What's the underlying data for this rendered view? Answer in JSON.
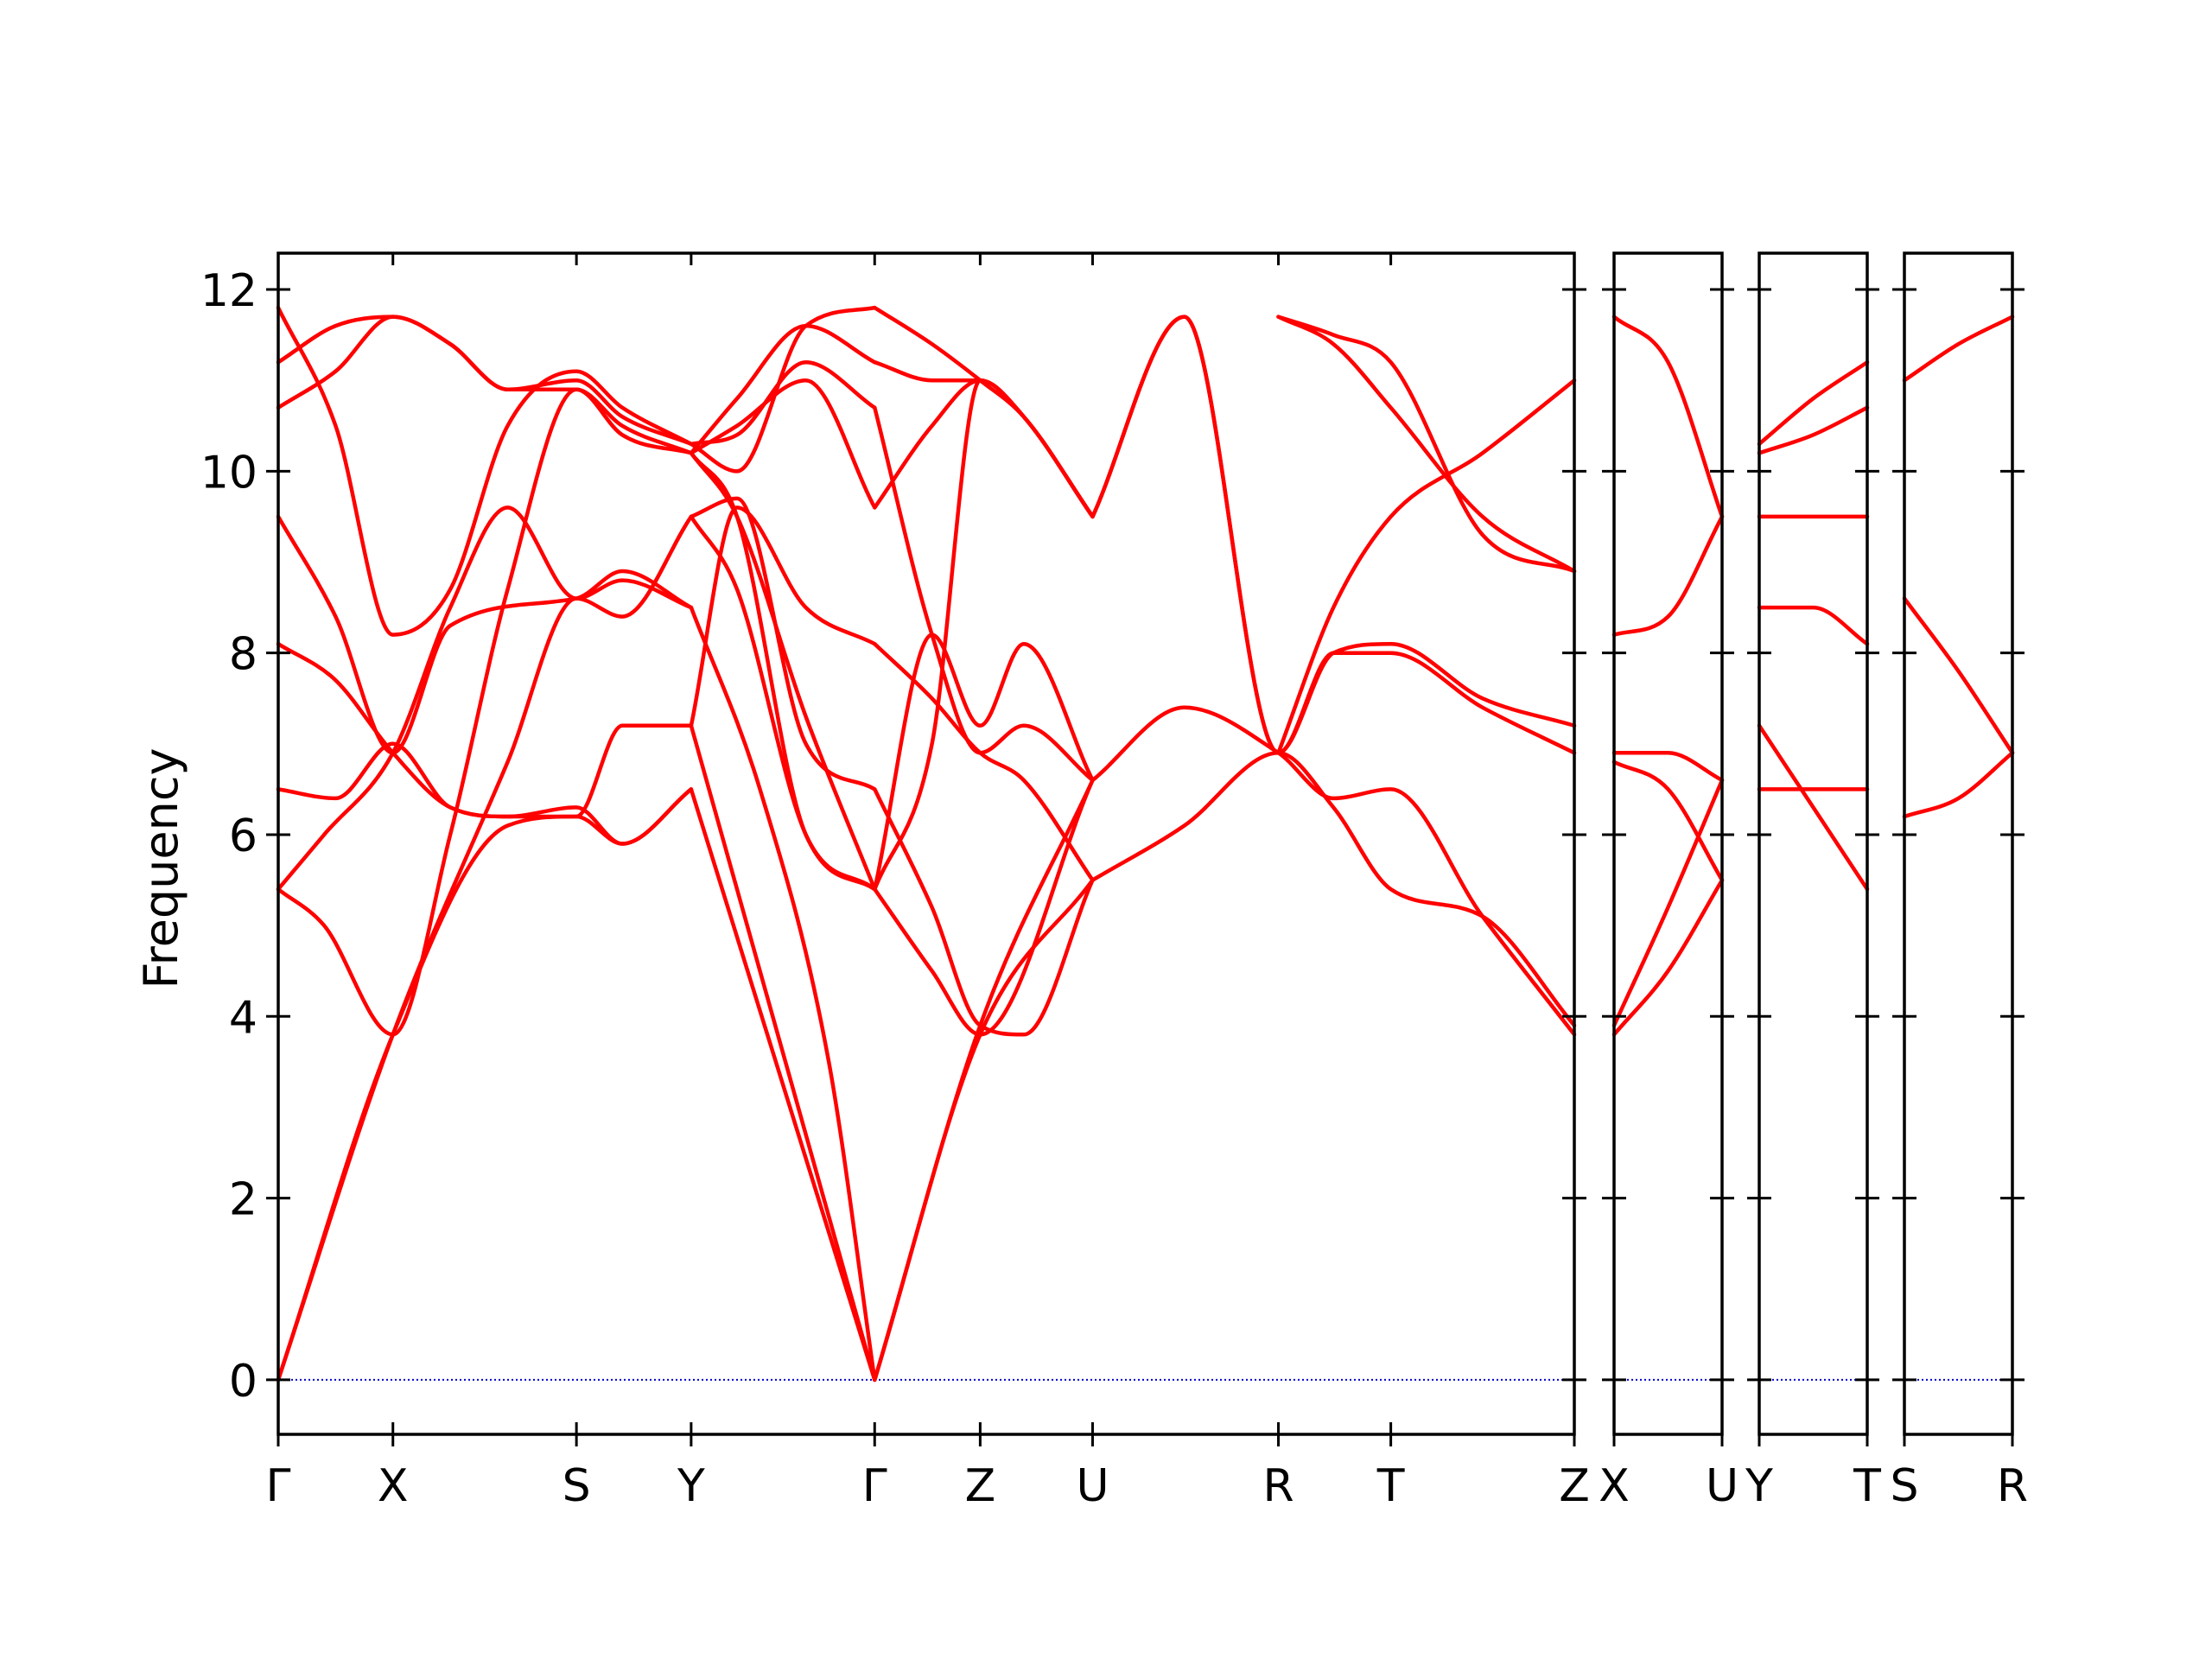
{
  "chart_data": {
    "type": "line",
    "ylabel": "Frequency",
    "ylim": [
      -0.6,
      12.4
    ],
    "yticks": [
      "0",
      "2",
      "4",
      "6",
      "8",
      "10",
      "12"
    ],
    "band_color": "#ff0000",
    "zero_line_color": "#0000cc",
    "segments": [
      {
        "labels": [
          "Γ",
          "X",
          "S",
          "Y",
          "Γ",
          "Z",
          "U",
          "R",
          "T",
          "Z"
        ],
        "label_pos": [
          0,
          1,
          2.6,
          3.6,
          5.2,
          6.12,
          7.1,
          8.72,
          9.7,
          11.3
        ],
        "bands": [
          {
            "x": [
              0,
              1,
              2,
              2.6,
              3.0,
              3.6
            ],
            "y": [
              0,
              3.8,
              6.1,
              6.2,
              5.9,
              6.5
            ]
          },
          {
            "x": [
              0,
              1,
              2,
              2.6,
              3.0,
              3.6
            ],
            "y": [
              0,
              3.8,
              6.8,
              8.6,
              8.4,
              9.5
            ]
          },
          {
            "x": [
              0,
              0.4,
              1,
              1.5,
              2.0,
              2.6,
              3.0,
              3.6
            ],
            "y": [
              5.4,
              5.0,
              3.8,
              6.0,
              8.7,
              10.9,
              10.5,
              10.2
            ]
          },
          {
            "x": [
              0,
              0.4,
              1,
              1.5,
              2.0,
              2.6,
              3.0,
              3.6
            ],
            "y": [
              5.4,
              6.0,
              6.9,
              8.5,
              9.6,
              8.6,
              8.8,
              8.5
            ]
          },
          {
            "x": [
              0,
              0.5,
              1,
              1.5,
              2.0,
              2.6,
              3.0,
              3.6
            ],
            "y": [
              6.5,
              6.4,
              7.0,
              6.3,
              6.2,
              6.2,
              7.2,
              7.2
            ]
          },
          {
            "x": [
              0,
              0.5,
              1,
              1.5,
              2.0,
              2.6,
              3.0,
              3.6
            ],
            "y": [
              8.1,
              7.7,
              6.9,
              6.3,
              6.2,
              6.3,
              5.9,
              6.5
            ]
          },
          {
            "x": [
              0,
              0.5,
              1,
              1.5,
              2.6,
              3.0,
              3.6
            ],
            "y": [
              9.5,
              8.4,
              6.9,
              8.3,
              8.6,
              8.9,
              8.5
            ]
          },
          {
            "x": [
              0,
              0.5,
              1,
              1.5,
              2.0,
              2.6,
              3.0,
              3.6
            ],
            "y": [
              10.7,
              11.1,
              11.7,
              11.4,
              10.9,
              10.9,
              10.4,
              10.2
            ]
          },
          {
            "x": [
              0,
              0.5,
              1,
              1.5,
              2.0,
              2.6,
              3.0,
              3.6
            ],
            "y": [
              11.2,
              11.6,
              11.7,
              11.4,
              10.9,
              11.0,
              10.6,
              10.3
            ]
          },
          {
            "x": [
              0,
              0.5,
              1,
              1.5,
              2.0,
              2.6,
              3.0,
              3.6
            ],
            "y": [
              11.8,
              10.5,
              8.2,
              8.7,
              10.5,
              11.1,
              10.7,
              10.3
            ]
          },
          {
            "x": [
              3.6,
              5.2
            ],
            "y": [
              6.5,
              0
            ]
          },
          {
            "x": [
              3.6,
              5.2
            ],
            "y": [
              7.2,
              0
            ]
          },
          {
            "x": [
              3.6,
              4.2,
              4.8,
              5.2
            ],
            "y": [
              8.5,
              6.5,
              3.5,
              0
            ]
          },
          {
            "x": [
              3.6,
              4.0,
              4.6,
              5.2
            ],
            "y": [
              9.5,
              8.7,
              6.0,
              5.4
            ]
          },
          {
            "x": [
              3.6,
              4.0,
              4.6,
              5.2
            ],
            "y": [
              10.2,
              9.5,
              7.3,
              5.4
            ]
          },
          {
            "x": [
              3.6,
              4.0,
              4.6,
              5.2
            ],
            "y": [
              10.2,
              9.5,
              6.0,
              5.4
            ]
          },
          {
            "x": [
              3.6,
              4.0,
              4.6,
              5.2
            ],
            "y": [
              9.5,
              9.7,
              7.0,
              6.5
            ]
          },
          {
            "x": [
              3.6,
              4.0,
              4.6,
              5.2
            ],
            "y": [
              7.2,
              9.6,
              8.5,
              8.1
            ]
          },
          {
            "x": [
              3.6,
              4.0,
              4.6,
              5.2
            ],
            "y": [
              10.2,
              10.5,
              11.0,
              9.6
            ]
          },
          {
            "x": [
              3.6,
              4.0,
              4.6,
              5.2
            ],
            "y": [
              10.3,
              10.4,
              11.2,
              10.7
            ]
          },
          {
            "x": [
              3.6,
              4.0,
              4.6,
              5.2
            ],
            "y": [
              10.2,
              10.8,
              11.6,
              11.2
            ]
          },
          {
            "x": [
              3.6,
              4.0,
              4.6,
              5.2
            ],
            "y": [
              10.3,
              10.0,
              11.6,
              11.8
            ]
          },
          {
            "x": [
              5.2,
              6.12,
              7.1
            ],
            "y": [
              0,
              3.8,
              5.5
            ]
          },
          {
            "x": [
              5.2,
              6.12,
              7.1
            ],
            "y": [
              0,
              3.9,
              6.6
            ]
          },
          {
            "x": [
              5.2,
              5.7,
              6.12,
              7.1
            ],
            "y": [
              5.4,
              4.5,
              3.8,
              6.6
            ]
          },
          {
            "x": [
              5.2,
              5.7,
              6.12,
              6.5,
              7.1
            ],
            "y": [
              5.4,
              7.0,
              11.0,
              10.6,
              9.5
            ]
          },
          {
            "x": [
              5.2,
              5.7,
              6.12,
              6.5,
              7.1
            ],
            "y": [
              5.4,
              8.2,
              7.2,
              8.1,
              6.6
            ]
          },
          {
            "x": [
              5.2,
              5.7,
              6.12,
              6.5,
              7.1
            ],
            "y": [
              6.5,
              5.2,
              3.9,
              3.8,
              5.5
            ]
          },
          {
            "x": [
              5.2,
              5.7,
              6.12,
              6.5,
              7.1
            ],
            "y": [
              8.1,
              7.5,
              6.9,
              6.6,
              5.5
            ]
          },
          {
            "x": [
              5.2,
              5.7,
              6.12,
              6.5,
              7.1
            ],
            "y": [
              9.6,
              10.5,
              11.0,
              10.6,
              9.5
            ]
          },
          {
            "x": [
              5.2,
              5.7,
              6.12,
              6.5,
              7.1
            ],
            "y": [
              10.7,
              8.2,
              6.9,
              7.2,
              6.6
            ]
          },
          {
            "x": [
              5.2,
              5.7,
              6.12,
              6.5,
              7.1
            ],
            "y": [
              11.2,
              11.0,
              11.0,
              10.6,
              9.5
            ]
          },
          {
            "x": [
              5.2,
              5.7,
              6.12,
              6.5,
              7.1
            ],
            "y": [
              11.8,
              11.4,
              11.0,
              10.6,
              9.5
            ]
          },
          {
            "x": [
              7.1,
              7.9,
              8.72,
              9.2,
              9.7,
              10.5,
              11.3
            ],
            "y": [
              9.5,
              11.7,
              6.9,
              8.0,
              8.1,
              7.5,
              7.2
            ]
          },
          {
            "x": [
              7.1,
              7.9,
              8.72,
              9.2,
              9.7,
              10.5,
              11.3
            ],
            "y": [
              9.5,
              11.7,
              6.9,
              8.0,
              8.0,
              7.4,
              6.9
            ]
          },
          {
            "x": [
              7.1,
              7.9,
              8.72,
              9.2,
              9.7,
              10.5,
              11.3
            ],
            "y": [
              6.6,
              7.4,
              6.9,
              6.4,
              6.5,
              5.1,
              3.8
            ]
          },
          {
            "x": [
              7.1,
              7.9,
              8.72,
              9.2,
              9.7,
              10.5,
              11.3
            ],
            "y": [
              5.5,
              6.1,
              6.9,
              6.3,
              5.4,
              5.1,
              3.9
            ]
          },
          {
            "x": [
              8.72,
              9.2,
              9.7,
              10.5,
              11.3
            ],
            "y": [
              6.9,
              8.5,
              9.5,
              10.2,
              11.0
            ]
          },
          {
            "x": [
              8.72,
              9.2,
              9.7,
              10.5,
              11.3
            ],
            "y": [
              11.7,
              11.5,
              11.2,
              9.3,
              8.9
            ]
          },
          {
            "x": [
              8.72,
              9.2,
              9.7,
              10.5,
              11.3
            ],
            "y": [
              11.7,
              11.4,
              10.7,
              9.5,
              8.9
            ]
          }
        ]
      },
      {
        "labels": [
          "X",
          "U"
        ],
        "label_pos": [
          0,
          1
        ],
        "bands": [
          {
            "x": [
              0,
              0.5,
              1
            ],
            "y": [
              3.8,
              4.5,
              5.5
            ]
          },
          {
            "x": [
              0,
              0.5,
              1
            ],
            "y": [
              3.9,
              5.2,
              6.6
            ]
          },
          {
            "x": [
              0,
              0.5,
              1
            ],
            "y": [
              6.8,
              6.5,
              5.5
            ]
          },
          {
            "x": [
              0,
              0.5,
              1
            ],
            "y": [
              6.9,
              6.9,
              6.6
            ]
          },
          {
            "x": [
              0,
              0.5,
              1
            ],
            "y": [
              8.2,
              8.4,
              9.5
            ]
          },
          {
            "x": [
              0,
              0.5,
              1
            ],
            "y": [
              11.7,
              11.2,
              9.5
            ]
          }
        ]
      },
      {
        "labels": [
          "Y",
          "T"
        ],
        "label_pos": [
          0,
          1
        ],
        "bands": [
          {
            "x": [
              0,
              0.5,
              1
            ],
            "y": [
              7.2,
              6.3,
              5.4
            ]
          },
          {
            "x": [
              0,
              0.5,
              1
            ],
            "y": [
              6.5,
              6.5,
              6.5
            ]
          },
          {
            "x": [
              0,
              0.5,
              1
            ],
            "y": [
              8.5,
              8.5,
              8.1
            ]
          },
          {
            "x": [
              0,
              0.5,
              1
            ],
            "y": [
              9.5,
              9.5,
              9.5
            ]
          },
          {
            "x": [
              0,
              0.5,
              1
            ],
            "y": [
              10.2,
              10.4,
              10.7
            ]
          },
          {
            "x": [
              0,
              0.5,
              1
            ],
            "y": [
              10.3,
              10.8,
              11.2
            ]
          }
        ]
      },
      {
        "labels": [
          "S",
          "R"
        ],
        "label_pos": [
          0,
          1
        ],
        "bands": [
          {
            "x": [
              0,
              0.5,
              1
            ],
            "y": [
              6.2,
              6.4,
              6.9
            ]
          },
          {
            "x": [
              0,
              0.5,
              1
            ],
            "y": [
              8.6,
              7.8,
              6.9
            ]
          },
          {
            "x": [
              0,
              0.5,
              1
            ],
            "y": [
              11.0,
              11.4,
              11.7
            ]
          }
        ]
      }
    ]
  }
}
